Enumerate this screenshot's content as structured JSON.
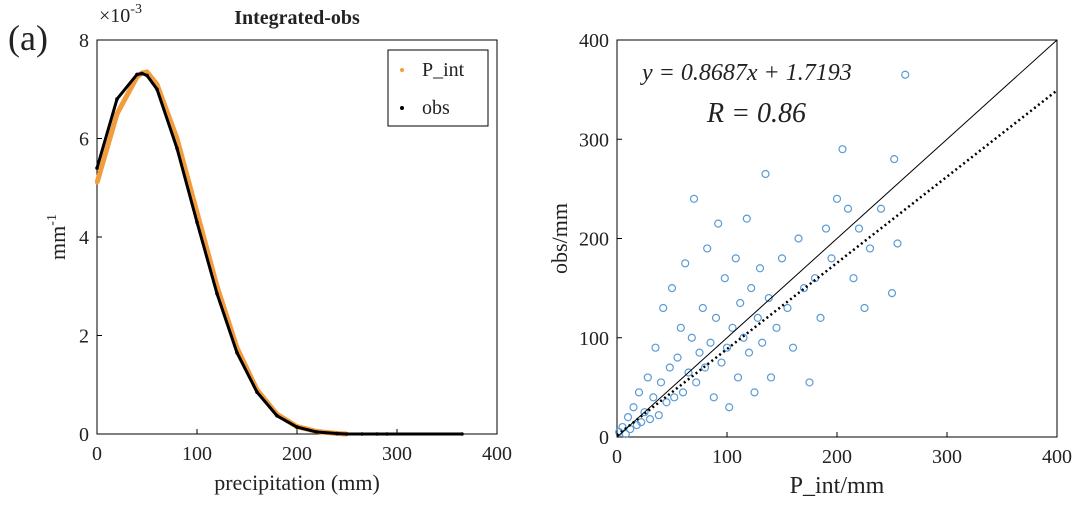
{
  "panel_label": "(a)",
  "chart_data": [
    {
      "type": "line",
      "title": "Integrated-obs",
      "x_label": "precipitation (mm)",
      "y_label": "mm",
      "y_label_exponent": "-1",
      "y_multiplier": "×10",
      "y_multiplier_exponent": "-3",
      "x": [
        0,
        20,
        40,
        45,
        50,
        60,
        80,
        100,
        120,
        140,
        160,
        180,
        200,
        220,
        240,
        250,
        265,
        280,
        290,
        365
      ],
      "series": [
        {
          "name": "P_int",
          "color": "#f39c3c",
          "values": [
            5.1,
            6.5,
            7.25,
            7.33,
            7.35,
            7.1,
            6.0,
            4.5,
            3.0,
            1.75,
            0.9,
            0.4,
            0.15,
            0.05,
            0.01,
            0,
            null,
            null,
            null,
            null
          ]
        },
        {
          "name": "obs",
          "color": "#000000",
          "values": [
            5.4,
            6.8,
            7.3,
            7.32,
            7.28,
            7.0,
            5.8,
            4.3,
            2.85,
            1.65,
            0.85,
            0.37,
            0.14,
            0.04,
            0.01,
            0,
            0,
            0,
            0,
            0
          ]
        }
      ],
      "xlim": [
        0,
        400
      ],
      "xticks": [
        0,
        100,
        200,
        300,
        400
      ],
      "ylim": [
        0,
        8
      ],
      "yticks": [
        0,
        2,
        4,
        6,
        8
      ],
      "legend": "upper-right"
    },
    {
      "type": "scatter",
      "x_label": "P_int/mm",
      "y_label": "obs/mm",
      "color": "#5b9bd5",
      "equation": "y = 0.8687x + 1.7193",
      "r_text": "R = 0.86",
      "fit": {
        "slope": 0.8687,
        "intercept": 1.7193
      },
      "x": [
        2,
        5,
        8,
        10,
        12,
        15,
        18,
        20,
        22,
        25,
        28,
        30,
        33,
        35,
        38,
        40,
        42,
        45,
        48,
        50,
        52,
        55,
        58,
        60,
        62,
        65,
        68,
        70,
        72,
        75,
        78,
        80,
        82,
        85,
        88,
        90,
        92,
        95,
        98,
        100,
        102,
        105,
        108,
        110,
        112,
        115,
        118,
        120,
        122,
        125,
        128,
        130,
        132,
        135,
        138,
        140,
        145,
        150,
        155,
        160,
        165,
        170,
        175,
        180,
        185,
        190,
        195,
        200,
        205,
        210,
        215,
        220,
        225,
        230,
        240,
        250,
        252,
        255,
        262
      ],
      "y": [
        5,
        10,
        3,
        20,
        8,
        30,
        12,
        45,
        15,
        25,
        60,
        18,
        40,
        90,
        22,
        55,
        130,
        35,
        70,
        150,
        40,
        80,
        110,
        45,
        175,
        65,
        100,
        240,
        55,
        85,
        130,
        70,
        190,
        95,
        40,
        120,
        215,
        75,
        160,
        90,
        30,
        110,
        180,
        60,
        135,
        100,
        220,
        85,
        150,
        45,
        120,
        170,
        95,
        265,
        140,
        60,
        110,
        180,
        130,
        90,
        200,
        150,
        55,
        160,
        120,
        210,
        180,
        240,
        290,
        230,
        160,
        210,
        130,
        190,
        230,
        145,
        280,
        195,
        365
      ],
      "xlim": [
        0,
        400
      ],
      "xticks": [
        0,
        100,
        200,
        300,
        400
      ],
      "ylim": [
        0,
        400
      ],
      "yticks": [
        0,
        100,
        200,
        300,
        400
      ]
    }
  ]
}
